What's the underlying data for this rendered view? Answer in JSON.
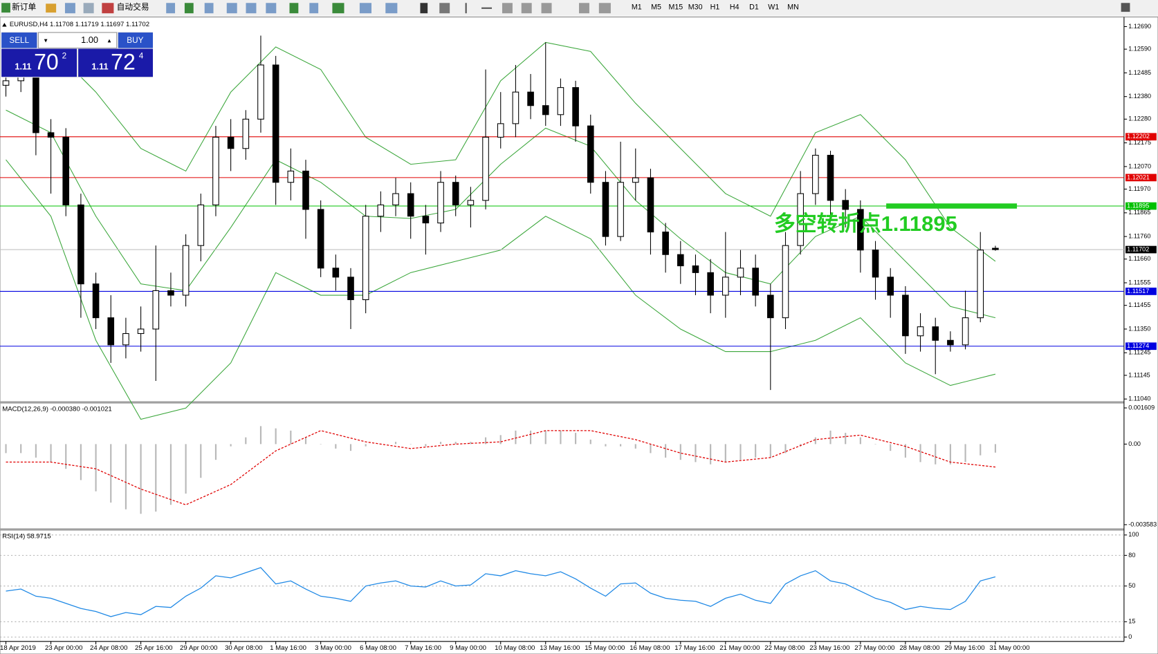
{
  "toolbar": {
    "new_order": "新订单",
    "auto_trading": "自动交易",
    "timeframes": [
      "M1",
      "M5",
      "M15",
      "M30",
      "H1",
      "H4",
      "D1",
      "W1",
      "MN"
    ]
  },
  "trade_panel": {
    "sell": "SELL",
    "buy": "BUY",
    "lots": "1.00",
    "bid": {
      "big": "1.11",
      "pips": "70",
      "frac": "2"
    },
    "ask": {
      "big": "1.11",
      "pips": "72",
      "frac": "4"
    }
  },
  "chart_data": [
    {
      "type": "candlestick",
      "title": "EURUSD,H4  1.11708 1.11719 1.11697 1.11702",
      "categories": [
        "18 Apr 2019",
        null,
        null,
        "23 Apr 00:00",
        null,
        null,
        "24 Apr 08:00",
        null,
        null,
        "25 Apr 16:00",
        null,
        null,
        "29 Apr 00:00",
        null,
        null,
        "30 Apr 08:00",
        null,
        null,
        "1 May 16:00",
        null,
        null,
        "3 May 00:00",
        null,
        null,
        "6 May 08:00",
        null,
        null,
        "7 May 16:00",
        null,
        null,
        "9 May 00:00",
        null,
        null,
        "10 May 08:00",
        null,
        null,
        "13 May 16:00",
        null,
        null,
        "15 May 00:00",
        null,
        null,
        "16 May 08:00",
        null,
        null,
        "17 May 16:00",
        null,
        null,
        "21 May 00:00",
        null,
        null,
        "22 May 08:00",
        null,
        null,
        "23 May 16:00",
        null,
        null,
        "27 May 00:00",
        null,
        null,
        "28 May 08:00",
        null,
        null,
        "29 May 16:00",
        null,
        null,
        "31 May 00:00"
      ],
      "open": [
        1.1243,
        1.1245,
        1.1247,
        1.1222,
        1.122,
        1.119,
        1.1155,
        1.114,
        1.1128,
        1.1133,
        1.1135,
        1.1152,
        1.115,
        1.1172,
        1.119,
        1.122,
        1.1215,
        1.1228,
        1.1252,
        1.12,
        1.1205,
        1.1188,
        1.1162,
        1.1158,
        1.1148,
        1.1185,
        1.119,
        1.1195,
        1.1185,
        1.1182,
        1.12,
        1.119,
        1.1192,
        1.122,
        1.1226,
        1.124,
        1.1234,
        1.123,
        1.1242,
        1.1225,
        1.12,
        1.1176,
        1.12,
        1.1202,
        1.1178,
        1.1168,
        1.1163,
        1.116,
        1.115,
        1.1158,
        1.1162,
        1.115,
        1.114,
        1.1172,
        1.1195,
        1.1212,
        1.1192,
        1.1188,
        1.117,
        1.1158,
        1.115,
        1.1132,
        1.1136,
        1.113,
        1.1128,
        1.114,
        1.11708
      ],
      "high": [
        1.125,
        1.1252,
        1.125,
        1.1228,
        1.1224,
        1.1195,
        1.116,
        1.115,
        1.114,
        1.1145,
        1.1172,
        1.116,
        1.1177,
        1.1195,
        1.1225,
        1.1228,
        1.1232,
        1.1265,
        1.1256,
        1.1215,
        1.121,
        1.1192,
        1.1168,
        1.1162,
        1.119,
        1.1196,
        1.1202,
        1.12,
        1.119,
        1.1205,
        1.1203,
        1.1198,
        1.125,
        1.124,
        1.1252,
        1.1248,
        1.1262,
        1.1246,
        1.1245,
        1.123,
        1.1205,
        1.1218,
        1.1215,
        1.1206,
        1.1182,
        1.1174,
        1.1168,
        1.1166,
        1.1178,
        1.117,
        1.1168,
        1.1155,
        1.1178,
        1.1205,
        1.1215,
        1.1214,
        1.1197,
        1.1192,
        1.1174,
        1.1162,
        1.1154,
        1.1142,
        1.114,
        1.1134,
        1.1152,
        1.1178,
        1.11719
      ],
      "low": [
        1.1238,
        1.124,
        1.1212,
        1.1195,
        1.1185,
        1.114,
        1.1135,
        1.112,
        1.1122,
        1.1125,
        1.1112,
        1.1145,
        1.1145,
        1.1165,
        1.1185,
        1.1205,
        1.121,
        1.1222,
        1.119,
        1.1192,
        1.1175,
        1.1158,
        1.1152,
        1.1135,
        1.1142,
        1.1178,
        1.1185,
        1.1175,
        1.1168,
        1.1178,
        1.1185,
        1.118,
        1.1188,
        1.1215,
        1.122,
        1.1228,
        1.1225,
        1.1225,
        1.1218,
        1.1195,
        1.1172,
        1.1174,
        1.1192,
        1.1168,
        1.116,
        1.1155,
        1.115,
        1.1142,
        1.114,
        1.115,
        1.1145,
        1.1108,
        1.1135,
        1.1168,
        1.119,
        1.1185,
        1.118,
        1.116,
        1.1148,
        1.114,
        1.1124,
        1.1125,
        1.1115,
        1.1125,
        1.1126,
        1.1138,
        1.11697
      ],
      "close": [
        1.1245,
        1.1247,
        1.1222,
        1.122,
        1.119,
        1.1155,
        1.114,
        1.1128,
        1.1133,
        1.1135,
        1.1152,
        1.115,
        1.1172,
        1.119,
        1.122,
        1.1215,
        1.1228,
        1.1252,
        1.12,
        1.1205,
        1.1188,
        1.1162,
        1.1158,
        1.1148,
        1.1185,
        1.119,
        1.1195,
        1.1185,
        1.1182,
        1.12,
        1.119,
        1.1192,
        1.122,
        1.1226,
        1.124,
        1.1234,
        1.123,
        1.1242,
        1.1225,
        1.12,
        1.1176,
        1.12,
        1.1202,
        1.1178,
        1.1168,
        1.1163,
        1.116,
        1.115,
        1.1158,
        1.1162,
        1.115,
        1.114,
        1.1172,
        1.1195,
        1.1212,
        1.1192,
        1.1188,
        1.117,
        1.1158,
        1.115,
        1.1132,
        1.1136,
        1.113,
        1.1128,
        1.114,
        1.117,
        1.11702
      ],
      "bands": {
        "x": [
          0,
          3,
          6,
          9,
          12,
          15,
          18,
          21,
          24,
          27,
          30,
          33,
          36,
          39,
          42,
          45,
          48,
          51,
          54,
          57,
          60,
          63,
          66
        ],
        "series": [
          {
            "color": "#3aa63a",
            "values": [
              1.1255,
              1.126,
              1.124,
              1.1215,
              1.1205,
              1.124,
              1.126,
              1.125,
              1.122,
              1.1208,
              1.121,
              1.1245,
              1.1262,
              1.1258,
              1.1235,
              1.1215,
              1.1195,
              1.1185,
              1.1222,
              1.123,
              1.121,
              1.118,
              1.1165
            ]
          },
          {
            "color": "#3aa63a",
            "values": [
              1.1232,
              1.1222,
              1.1185,
              1.1155,
              1.1152,
              1.118,
              1.121,
              1.12,
              1.1185,
              1.1184,
              1.1188,
              1.1208,
              1.1224,
              1.1216,
              1.1192,
              1.1175,
              1.116,
              1.1155,
              1.1176,
              1.1185,
              1.1165,
              1.1145,
              1.114
            ]
          },
          {
            "color": "#3aa63a",
            "values": [
              1.121,
              1.1185,
              1.113,
              1.1095,
              1.11,
              1.112,
              1.116,
              1.115,
              1.115,
              1.116,
              1.1165,
              1.117,
              1.1185,
              1.1175,
              1.115,
              1.1135,
              1.1125,
              1.1125,
              1.113,
              1.114,
              1.112,
              1.111,
              1.1115
            ]
          }
        ]
      },
      "hlines": [
        {
          "value": 1.12202,
          "color": "#e00000"
        },
        {
          "value": 1.12021,
          "color": "#e00000"
        },
        {
          "value": 1.11895,
          "color": "#00c000",
          "marker": true
        },
        {
          "value": 1.11702,
          "color": "#c0c0c0",
          "tag": "#000000"
        },
        {
          "value": 1.11517,
          "color": "#0000e0"
        },
        {
          "value": 1.11274,
          "color": "#0000e0"
        }
      ],
      "annotation": {
        "text": "多空转折点1.11895",
        "color": "#22cc22"
      },
      "ylim": [
        1.1103,
        1.12726
      ],
      "yticks": [
        {
          "value": 1.1269,
          "label": "1.12690"
        },
        {
          "value": 1.1259,
          "label": "1.12590"
        },
        1.12485,
        {
          "value": 1.1238,
          "label": "1.12380"
        },
        {
          "value": 1.1228,
          "label": "1.12280"
        },
        1.12175,
        {
          "value": 1.1207,
          "label": "1.12070"
        },
        {
          "value": 1.1197,
          "label": "1.11970"
        },
        1.11865,
        {
          "value": 1.1176,
          "label": "1.11760"
        },
        {
          "value": 1.1166,
          "label": "1.11660"
        },
        1.11555,
        1.11455,
        {
          "value": 1.1135,
          "label": "1.11350"
        },
        1.11245,
        1.11145,
        {
          "value": 1.1104,
          "label": "1.11040"
        }
      ]
    },
    {
      "type": "bar",
      "title": "MACD(12,26,9) -0.000380 -0.001021",
      "color": "#b8b8b8",
      "values": [
        -0.0004,
        -0.0004,
        -0.0006,
        -0.0008,
        -0.0011,
        -0.0016,
        -0.0021,
        -0.0026,
        -0.0029,
        -0.0031,
        -0.003,
        -0.0027,
        -0.0022,
        -0.0015,
        -0.0007,
        -0.0001,
        0.0003,
        0.0008,
        0.0007,
        0.0006,
        0.0003,
        0,
        -0.0002,
        -0.0003,
        -0.0001,
        0,
        0.0001,
        0,
        -0.0001,
        0.0001,
        0.0001,
        0.0001,
        0.0003,
        0.0004,
        0.0006,
        0.0006,
        0.0006,
        0.0006,
        0.0005,
        0.0002,
        -0.0001,
        -0.0001,
        -0.0002,
        -0.0004,
        -0.0006,
        -0.0007,
        -0.0008,
        -0.0009,
        -0.0008,
        -0.0007,
        -0.0006,
        -0.0006,
        -0.0004,
        -0.0001,
        0.0003,
        0.0006,
        0.0005,
        0.0003,
        0,
        -0.0003,
        -0.0006,
        -0.0008,
        -0.0009,
        -0.0009,
        -0.0008,
        -0.0005,
        -0.00038
      ],
      "signal": {
        "color": "#e00000",
        "x": [
          0,
          3,
          6,
          9,
          12,
          15,
          18,
          21,
          24,
          27,
          30,
          33,
          36,
          39,
          42,
          45,
          48,
          51,
          54,
          57,
          60,
          63,
          66
        ],
        "values": [
          -0.0008,
          -0.0008,
          -0.0011,
          -0.002,
          -0.0027,
          -0.0018,
          -0.0003,
          0.0006,
          0.0001,
          -0.0002,
          0,
          0.0001,
          0.0006,
          0.0006,
          0.0002,
          -0.0004,
          -0.0008,
          -0.0006,
          0.0002,
          0.0004,
          -0.0001,
          -0.0008,
          -0.001021
        ]
      },
      "ylim": [
        -0.00378,
        0.001806
      ],
      "yticks": [
        0.001609,
        {
          "value": 0,
          "label": "0.00"
        },
        -0.003583
      ]
    },
    {
      "type": "line",
      "title": "RSI(14) 58.9715",
      "color": "#1e88e5",
      "grid": true,
      "values": [
        45,
        47,
        40,
        38,
        33,
        28,
        25,
        20,
        24,
        22,
        30,
        29,
        40,
        48,
        60,
        58,
        63,
        68,
        52,
        55,
        47,
        40,
        38,
        35,
        50,
        53,
        55,
        50,
        49,
        55,
        50,
        51,
        62,
        60,
        65,
        62,
        60,
        64,
        57,
        48,
        40,
        52,
        53,
        43,
        38,
        36,
        35,
        30,
        38,
        42,
        36,
        33,
        52,
        60,
        65,
        55,
        52,
        45,
        38,
        34,
        27,
        30,
        28,
        27,
        35,
        55,
        58.9715
      ],
      "ylim": [
        -4.3,
        104.3
      ],
      "yticks": [
        100,
        80,
        50,
        15,
        0
      ]
    }
  ]
}
